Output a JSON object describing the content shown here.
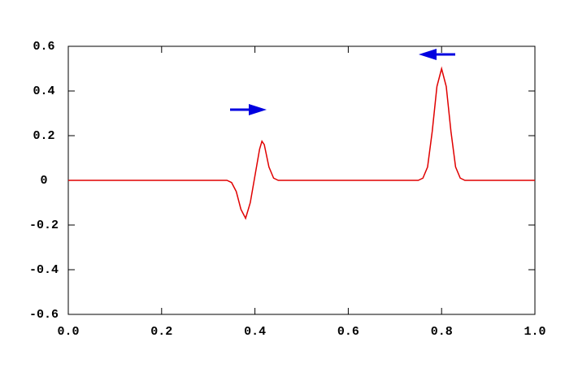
{
  "chart_data": {
    "type": "line",
    "x": [
      0,
      0.34,
      0.35,
      0.36,
      0.37,
      0.38,
      0.39,
      0.4,
      0.41,
      0.415,
      0.42,
      0.43,
      0.44,
      0.45,
      0.75,
      0.76,
      0.77,
      0.78,
      0.79,
      0.8,
      0.81,
      0.82,
      0.83,
      0.84,
      0.85,
      1.0
    ],
    "series": [
      {
        "color": "#e00000",
        "values": [
          0,
          0,
          -0.01,
          -0.05,
          -0.13,
          -0.17,
          -0.1,
          0.02,
          0.14,
          0.175,
          0.16,
          0.06,
          0.01,
          0,
          0,
          0.01,
          0.06,
          0.22,
          0.42,
          0.5,
          0.42,
          0.22,
          0.06,
          0.01,
          0,
          0
        ]
      }
    ],
    "xlim": [
      0,
      1
    ],
    "ylim": [
      -0.6,
      0.6
    ],
    "xticks": [
      {
        "value": 0,
        "label": "0.0"
      },
      0.2,
      0.4,
      0.6,
      0.8,
      {
        "value": 1,
        "label": "1.0"
      }
    ],
    "yticks": [
      -0.6,
      -0.4,
      -0.2,
      0,
      0.2,
      0.4,
      0.6
    ],
    "grid": false
  }
}
